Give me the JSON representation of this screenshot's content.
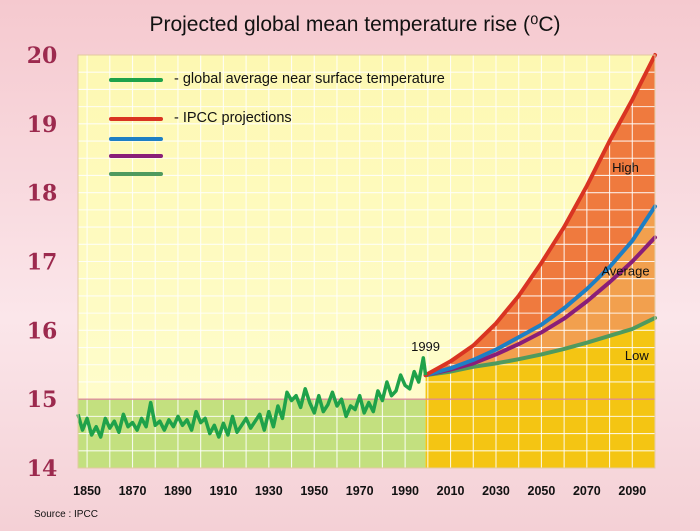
{
  "chart_data": {
    "type": "line",
    "title": "Projected global mean temperature rise (⁰C)",
    "xlim": [
      1846,
      2100
    ],
    "ylim": [
      14,
      20
    ],
    "y_ticks": [
      "14",
      "15",
      "16",
      "17",
      "18",
      "19",
      "20"
    ],
    "x_ticks": [
      "1850",
      "1870",
      "1890",
      "1910",
      "1930",
      "1950",
      "1970",
      "1990",
      "2010",
      "2030",
      "2050",
      "2070",
      "2090"
    ],
    "grid": true,
    "reference_line": 15,
    "legend": [
      {
        "label": "- global average near surface temperature",
        "color": "#1fa24a"
      },
      {
        "label": "- IPCC projections",
        "color": "#d93422"
      },
      {
        "label": "",
        "color": "#1e7fc4"
      },
      {
        "label": "",
        "color": "#8a1e78"
      },
      {
        "label": "",
        "color": "#4f9a5e"
      }
    ],
    "annotations": {
      "year_1999": "1999",
      "high": "High",
      "average": "Average",
      "low": "Low"
    },
    "source": "Source : IPCC",
    "observed": {
      "color": "#1fa24a",
      "x": [
        1846,
        1848,
        1850,
        1852,
        1854,
        1856,
        1858,
        1860,
        1862,
        1864,
        1866,
        1868,
        1870,
        1872,
        1874,
        1876,
        1878,
        1880,
        1882,
        1884,
        1886,
        1888,
        1890,
        1892,
        1894,
        1896,
        1898,
        1900,
        1902,
        1904,
        1906,
        1908,
        1910,
        1912,
        1914,
        1916,
        1918,
        1920,
        1922,
        1924,
        1926,
        1928,
        1930,
        1932,
        1934,
        1936,
        1938,
        1940,
        1942,
        1944,
        1946,
        1948,
        1950,
        1952,
        1954,
        1956,
        1958,
        1960,
        1962,
        1964,
        1966,
        1968,
        1970,
        1972,
        1974,
        1976,
        1978,
        1980,
        1982,
        1984,
        1986,
        1988,
        1990,
        1992,
        1994,
        1996,
        1998,
        1999
      ],
      "y": [
        14.78,
        14.55,
        14.72,
        14.48,
        14.6,
        14.45,
        14.72,
        14.58,
        14.68,
        14.52,
        14.78,
        14.6,
        14.66,
        14.55,
        14.72,
        14.6,
        14.95,
        14.62,
        14.68,
        14.55,
        14.7,
        14.6,
        14.75,
        14.62,
        14.7,
        14.55,
        14.82,
        14.66,
        14.72,
        14.5,
        14.62,
        14.45,
        14.65,
        14.48,
        14.75,
        14.52,
        14.62,
        14.72,
        14.58,
        14.68,
        14.78,
        14.55,
        14.82,
        14.6,
        14.9,
        14.72,
        15.1,
        14.98,
        15.05,
        14.88,
        15.15,
        14.95,
        14.8,
        15.05,
        14.82,
        14.92,
        15.1,
        14.9,
        15.0,
        14.75,
        14.9,
        14.85,
        15.05,
        14.8,
        14.95,
        14.82,
        15.12,
        14.98,
        15.25,
        15.05,
        15.12,
        15.35,
        15.2,
        15.15,
        15.4,
        15.25,
        15.6,
        15.35
      ]
    },
    "projections": {
      "x": [
        1999,
        2010,
        2020,
        2030,
        2040,
        2050,
        2060,
        2070,
        2080,
        2090,
        2100
      ],
      "series": [
        {
          "name": "High",
          "color": "#d93422",
          "values": [
            15.35,
            15.55,
            15.78,
            16.1,
            16.5,
            16.98,
            17.5,
            18.1,
            18.75,
            19.35,
            20.0
          ]
        },
        {
          "name": "Average",
          "color": "#1e7fc4",
          "values": [
            15.35,
            15.45,
            15.57,
            15.72,
            15.9,
            16.08,
            16.32,
            16.6,
            16.92,
            17.3,
            17.8
          ]
        },
        {
          "name": "",
          "color": "#8a1e78",
          "values": [
            15.35,
            15.43,
            15.52,
            15.65,
            15.8,
            15.97,
            16.17,
            16.42,
            16.7,
            17.0,
            17.35
          ]
        },
        {
          "name": "Low",
          "color": "#4f9a5e",
          "values": [
            15.35,
            15.4,
            15.47,
            15.52,
            15.58,
            15.65,
            15.73,
            15.82,
            15.92,
            16.02,
            16.18
          ]
        }
      ]
    }
  }
}
